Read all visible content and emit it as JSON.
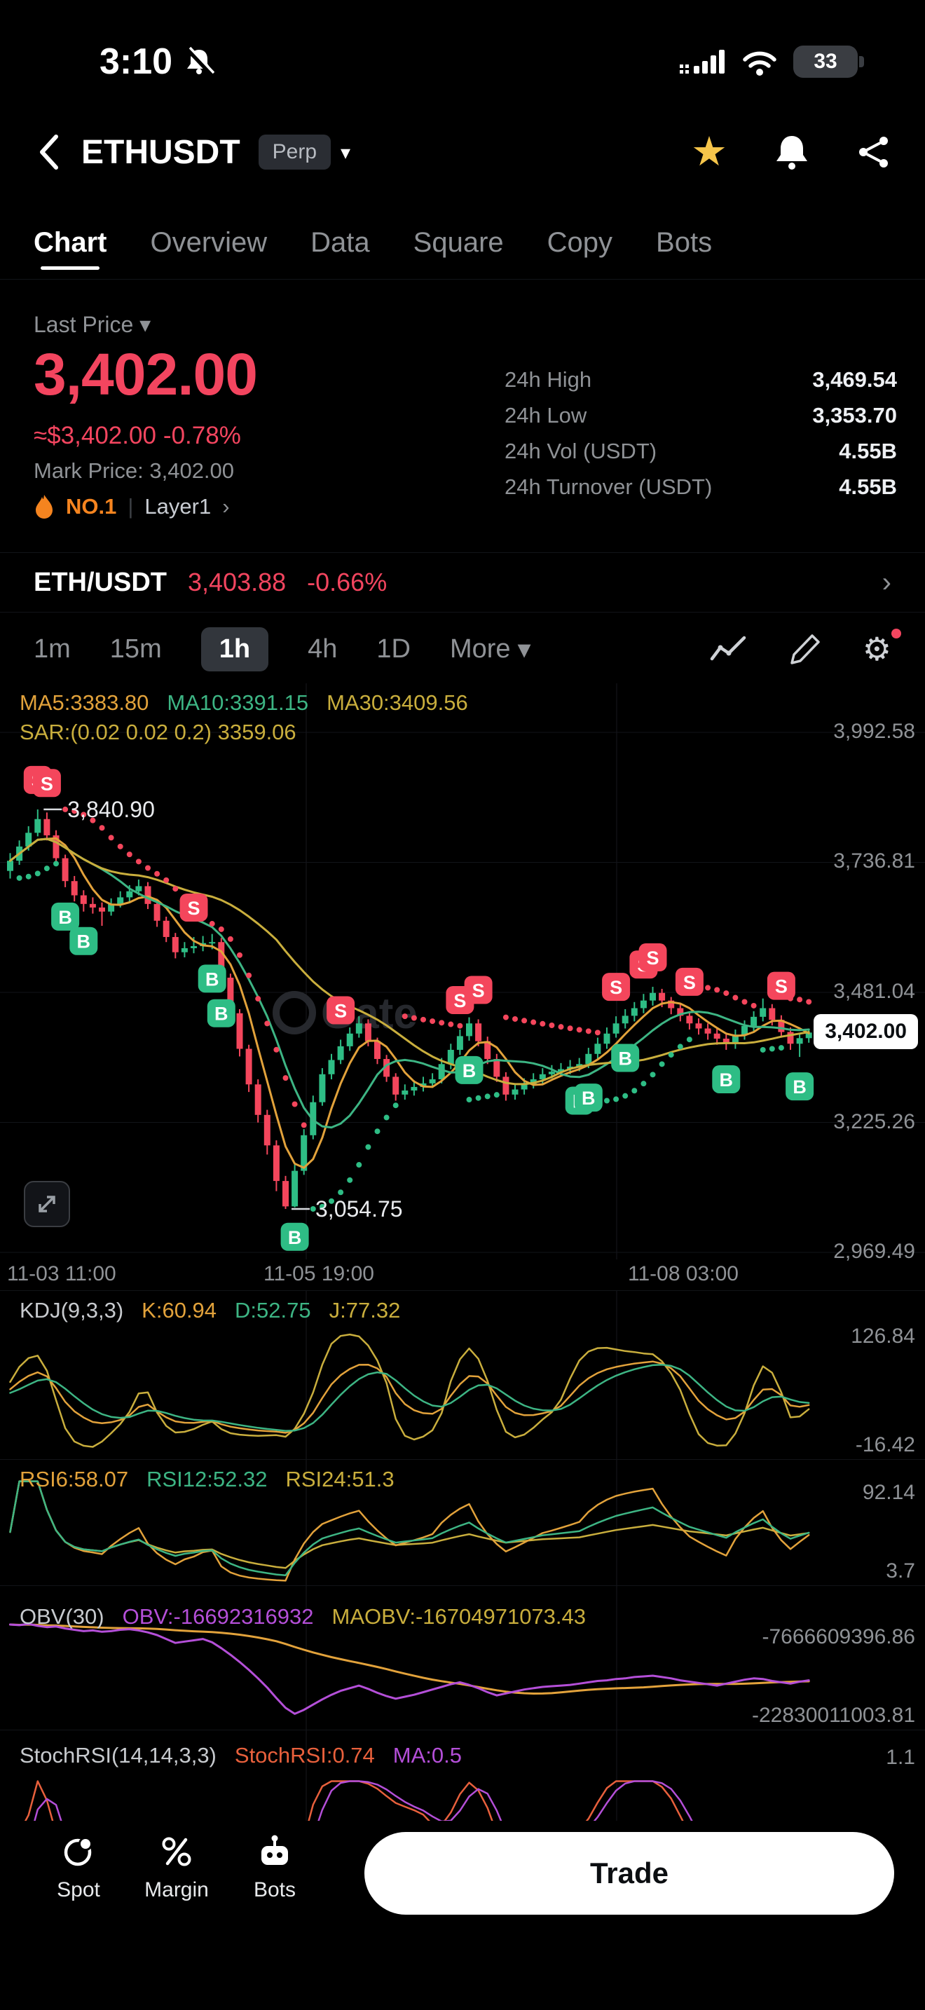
{
  "status_bar": {
    "time": "3:10",
    "battery": "33"
  },
  "header": {
    "title": "ETHUSDT",
    "badge": "Perp"
  },
  "nav_tabs": {
    "items": [
      "Chart",
      "Overview",
      "Data",
      "Square",
      "Copy",
      "Bots"
    ],
    "active": "Chart"
  },
  "ticker": {
    "last_price_label": "Last Price",
    "price": "3,402.00",
    "approx": "≈$3,402.00",
    "change": "-0.78%",
    "mark_price": "Mark Price: 3,402.00",
    "rank": "NO.1",
    "category": "Layer1",
    "stats": [
      {
        "label": "24h High",
        "value": "3,469.54"
      },
      {
        "label": "24h Low",
        "value": "3,353.70"
      },
      {
        "label": "24h Vol (USDT)",
        "value": "4.55B"
      },
      {
        "label": "24h Turnover (USDT)",
        "value": "4.55B"
      }
    ]
  },
  "pair_row": {
    "pair": "ETH/USDT",
    "price": "3,403.88",
    "change": "-0.66%"
  },
  "timeframes": {
    "items": [
      "1m",
      "15m",
      "1h",
      "4h",
      "1D"
    ],
    "more": "More",
    "active": "1h"
  },
  "panel_headers": {
    "main1": [
      [
        "MA5:3383.80",
        "#e2a23b"
      ],
      [
        "MA10:3391.15",
        "#3db584"
      ],
      [
        "MA30:3409.56",
        "#c9ae3d"
      ]
    ],
    "main2": [
      [
        "SAR:(0.02 0.02 0.2) 3359.06",
        "#c9ae3d"
      ]
    ],
    "kdj": [
      [
        "KDJ(9,3,3)",
        "#c7cace"
      ],
      [
        "K:60.94",
        "#e2a23b"
      ],
      [
        "D:52.75",
        "#3db584"
      ],
      [
        "J:77.32",
        "#c9ae3d"
      ]
    ],
    "rsi": [
      [
        "RSI6:58.07",
        "#e2a23b"
      ],
      [
        "RSI12:52.32",
        "#3db584"
      ],
      [
        "RSI24:51.3",
        "#c9ae3d"
      ]
    ],
    "obv": [
      [
        "OBV(30)",
        "#c7cace"
      ],
      [
        "OBV:-16692316932",
        "#b44fd8"
      ],
      [
        "MAOBV:-16704971073.43",
        "#c9ae3d"
      ]
    ],
    "stoch": [
      [
        "StochRSI(14,14,3,3)",
        "#c7cace"
      ],
      [
        "StochRSI:0.74",
        "#e8603c"
      ],
      [
        "MA:0.5",
        "#b44fd8"
      ]
    ]
  },
  "chart_data": {
    "type": "candlestick",
    "title": "ETHUSDT Perp 1h",
    "ylim": [
      2969.49,
      3992.58
    ],
    "y_axis_labels": [
      {
        "text": "3,992.58",
        "value": 3992.58
      },
      {
        "text": "3,736.81",
        "value": 3736.81
      },
      {
        "text": "3,481.04",
        "value": 3481.04
      },
      {
        "text": "3,225.26",
        "value": 3225.26
      },
      {
        "text": "2,969.49",
        "value": 2969.49
      }
    ],
    "x_axis_labels": [
      {
        "text": "11-03 11:00"
      },
      {
        "text": "11-05 19:00"
      },
      {
        "text": "11-08 03:00"
      }
    ],
    "high_annotation": {
      "text": "3,840.90"
    },
    "low_annotation": {
      "text": "3,054.75"
    },
    "last_price_tag": "3,402.00",
    "last_price_value": 3402,
    "indicators": {
      "ma": [
        5,
        10,
        30
      ],
      "sar": [
        0.02,
        0.02,
        0.2
      ]
    },
    "candles": [
      [
        3720,
        3755,
        3705,
        3740
      ],
      [
        3740,
        3780,
        3732,
        3768
      ],
      [
        3768,
        3808,
        3760,
        3795
      ],
      [
        3795,
        3841,
        3788,
        3822
      ],
      [
        3822,
        3835,
        3780,
        3790
      ],
      [
        3790,
        3800,
        3735,
        3745
      ],
      [
        3745,
        3752,
        3688,
        3700
      ],
      [
        3700,
        3710,
        3660,
        3672
      ],
      [
        3672,
        3682,
        3640,
        3655
      ],
      [
        3655,
        3668,
        3636,
        3648
      ],
      [
        3648,
        3658,
        3612,
        3640
      ],
      [
        3640,
        3666,
        3632,
        3655
      ],
      [
        3655,
        3680,
        3648,
        3668
      ],
      [
        3668,
        3692,
        3660,
        3680
      ],
      [
        3680,
        3703,
        3672,
        3690
      ],
      [
        3690,
        3698,
        3645,
        3655
      ],
      [
        3655,
        3663,
        3610,
        3622
      ],
      [
        3622,
        3630,
        3580,
        3590
      ],
      [
        3590,
        3598,
        3548,
        3560
      ],
      [
        3560,
        3580,
        3550,
        3568
      ],
      [
        3568,
        3590,
        3558,
        3572
      ],
      [
        3572,
        3592,
        3562,
        3578
      ],
      [
        3578,
        3596,
        3566,
        3580
      ],
      [
        3580,
        3588,
        3498,
        3510
      ],
      [
        3510,
        3518,
        3428,
        3440
      ],
      [
        3440,
        3448,
        3355,
        3370
      ],
      [
        3370,
        3378,
        3285,
        3300
      ],
      [
        3300,
        3310,
        3225,
        3240
      ],
      [
        3240,
        3250,
        3162,
        3180
      ],
      [
        3180,
        3190,
        3090,
        3110
      ],
      [
        3110,
        3120,
        3055,
        3060
      ],
      [
        3060,
        3142,
        3058,
        3130
      ],
      [
        3130,
        3212,
        3122,
        3200
      ],
      [
        3200,
        3278,
        3192,
        3265
      ],
      [
        3265,
        3332,
        3258,
        3320
      ],
      [
        3320,
        3360,
        3310,
        3348
      ],
      [
        3348,
        3388,
        3340,
        3375
      ],
      [
        3375,
        3412,
        3366,
        3400
      ],
      [
        3400,
        3434,
        3392,
        3420
      ],
      [
        3420,
        3428,
        3375,
        3385
      ],
      [
        3385,
        3392,
        3340,
        3350
      ],
      [
        3350,
        3358,
        3305,
        3315
      ],
      [
        3315,
        3322,
        3268,
        3280
      ],
      [
        3280,
        3300,
        3270,
        3288
      ],
      [
        3288,
        3308,
        3278,
        3295
      ],
      [
        3295,
        3315,
        3286,
        3302
      ],
      [
        3302,
        3322,
        3294,
        3310
      ],
      [
        3310,
        3352,
        3302,
        3340
      ],
      [
        3340,
        3380,
        3330,
        3368
      ],
      [
        3368,
        3408,
        3358,
        3395
      ],
      [
        3395,
        3432,
        3386,
        3420
      ],
      [
        3420,
        3428,
        3375,
        3385
      ],
      [
        3385,
        3394,
        3340,
        3350
      ],
      [
        3350,
        3360,
        3305,
        3315
      ],
      [
        3315,
        3324,
        3268,
        3280
      ],
      [
        3280,
        3302,
        3270,
        3290
      ],
      [
        3290,
        3312,
        3280,
        3300
      ],
      [
        3300,
        3322,
        3292,
        3310
      ],
      [
        3310,
        3332,
        3300,
        3320
      ],
      [
        3320,
        3338,
        3312,
        3325
      ],
      [
        3325,
        3342,
        3316,
        3330
      ],
      [
        3330,
        3348,
        3320,
        3335
      ],
      [
        3335,
        3352,
        3326,
        3340
      ],
      [
        3340,
        3372,
        3332,
        3360
      ],
      [
        3360,
        3392,
        3350,
        3380
      ],
      [
        3380,
        3412,
        3370,
        3400
      ],
      [
        3400,
        3434,
        3392,
        3420
      ],
      [
        3420,
        3448,
        3410,
        3435
      ],
      [
        3435,
        3462,
        3424,
        3450
      ],
      [
        3450,
        3478,
        3440,
        3465
      ],
      [
        3465,
        3492,
        3455,
        3480
      ],
      [
        3480,
        3488,
        3452,
        3465
      ],
      [
        3465,
        3472,
        3438,
        3450
      ],
      [
        3450,
        3458,
        3424,
        3435
      ],
      [
        3435,
        3444,
        3408,
        3420
      ],
      [
        3420,
        3430,
        3398,
        3410
      ],
      [
        3410,
        3420,
        3388,
        3400
      ],
      [
        3400,
        3410,
        3378,
        3390
      ],
      [
        3390,
        3398,
        3368,
        3380
      ],
      [
        3380,
        3408,
        3370,
        3398
      ],
      [
        3398,
        3426,
        3388,
        3415
      ],
      [
        3415,
        3444,
        3405,
        3433
      ],
      [
        3433,
        3469,
        3424,
        3450
      ],
      [
        3450,
        3458,
        3416,
        3427
      ],
      [
        3427,
        3436,
        3392,
        3403
      ],
      [
        3403,
        3412,
        3368,
        3380
      ],
      [
        3380,
        3400,
        3354,
        3391
      ],
      [
        3391,
        3410,
        3382,
        3402
      ]
    ],
    "markers": [
      {
        "i": 3,
        "side": "S"
      },
      {
        "i": 4,
        "side": "S"
      },
      {
        "i": 6,
        "side": "B"
      },
      {
        "i": 8,
        "side": "B"
      },
      {
        "i": 20,
        "side": "S"
      },
      {
        "i": 22,
        "side": "B"
      },
      {
        "i": 23,
        "side": "B"
      },
      {
        "i": 31,
        "side": "B"
      },
      {
        "i": 36,
        "side": "S"
      },
      {
        "i": 49,
        "side": "S"
      },
      {
        "i": 50,
        "side": "B"
      },
      {
        "i": 51,
        "side": "S"
      },
      {
        "i": 62,
        "side": "B"
      },
      {
        "i": 63,
        "side": "B"
      },
      {
        "i": 66,
        "side": "S"
      },
      {
        "i": 67,
        "side": "B"
      },
      {
        "i": 69,
        "side": "S"
      },
      {
        "i": 70,
        "side": "S"
      },
      {
        "i": 74,
        "side": "S"
      },
      {
        "i": 78,
        "side": "B"
      },
      {
        "i": 84,
        "side": "S"
      },
      {
        "i": 86,
        "side": "B"
      }
    ],
    "obv_billions": [
      -8.2,
      -8.3,
      -8.1,
      -8.4,
      -8.6,
      -8.5,
      -8.8,
      -9.0,
      -9.2,
      -9.1,
      -9.3,
      -9.2,
      -9.0,
      -8.9,
      -9.1,
      -9.4,
      -9.8,
      -10.4,
      -11.0,
      -10.8,
      -10.6,
      -10.4,
      -10.9,
      -11.8,
      -12.8,
      -13.9,
      -15.1,
      -16.4,
      -17.8,
      -19.4,
      -20.9,
      -21.8,
      -21.2,
      -20.4,
      -19.6,
      -18.9,
      -18.3,
      -17.9,
      -17.5,
      -18.0,
      -18.6,
      -19.1,
      -19.5,
      -19.2,
      -18.9,
      -18.5,
      -18.1,
      -17.7,
      -17.3,
      -17.0,
      -17.4,
      -17.9,
      -18.5,
      -19.0,
      -18.7,
      -18.4,
      -18.1,
      -17.9,
      -17.7,
      -17.6,
      -17.5,
      -17.4,
      -17.2,
      -17.0,
      -16.8,
      -16.7,
      -16.5,
      -16.4,
      -16.2,
      -16.1,
      -16.0,
      -16.2,
      -16.4,
      -16.7,
      -16.9,
      -17.1,
      -17.3,
      -17.5,
      -17.2,
      -16.9,
      -16.6,
      -16.4,
      -16.5,
      -16.8,
      -17.0,
      -17.2,
      -16.9,
      -16.7
    ],
    "panel_axis": {
      "kdj": {
        "max": "126.84",
        "min": "-16.42",
        "vmax": 126.84,
        "vmin": -16.42
      },
      "rsi": {
        "max": "92.14",
        "min": "3.7",
        "vmax": 92.14,
        "vmin": 3.7
      },
      "obv": {
        "max": "-7666609396.86",
        "min": "-22830011003.81",
        "vmax": -7.666609,
        "vmin": -22.830011
      },
      "stoch": {
        "max": "1.1",
        "vmax": 1.1
      }
    }
  },
  "bottom_bar": {
    "items": [
      "Spot",
      "Margin",
      "Bots"
    ],
    "trade": "Trade"
  }
}
